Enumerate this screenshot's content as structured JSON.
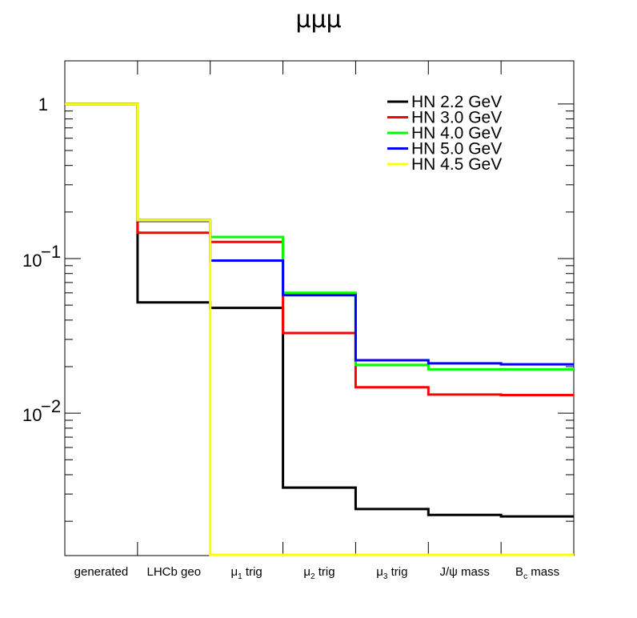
{
  "chart_data": {
    "type": "line",
    "title": "μμμ",
    "xlabel": "",
    "ylabel": "",
    "y_scale": "log",
    "ylim": [
      0.0012,
      1.9
    ],
    "grid": false,
    "legend_position": "top-right",
    "categories": [
      "generated",
      "LHCb geo",
      "μ1 trig",
      "μ2 trig",
      "μ3 trig",
      "J/ψ mass",
      "Bc mass"
    ],
    "y_ticks": [
      {
        "value": 1,
        "label": "1"
      },
      {
        "value": 0.1,
        "label": "10",
        "exp": "−1"
      },
      {
        "value": 0.01,
        "label": "10",
        "exp": "−2"
      }
    ],
    "series": [
      {
        "name": "HN 2.2 GeV",
        "color": "#000000",
        "values": [
          1.0,
          0.052,
          0.048,
          0.0033,
          0.0024,
          0.0022,
          0.00215
        ]
      },
      {
        "name": "HN 3.0 GeV",
        "color": "#ff0000",
        "values": [
          1.0,
          0.147,
          0.128,
          0.033,
          0.0147,
          0.0132,
          0.0131
        ]
      },
      {
        "name": "HN 4.0 GeV",
        "color": "#00ff00",
        "values": [
          1.0,
          0.178,
          0.138,
          0.06,
          0.0205,
          0.0192,
          0.0192
        ]
      },
      {
        "name": "HN 5.0 GeV",
        "color": "#0000ff",
        "values": [
          1.0,
          0.175,
          0.097,
          0.058,
          0.022,
          0.021,
          0.0207
        ]
      },
      {
        "name": "HN 4.5 GeV",
        "color": "#ffff00",
        "values": [
          1.0,
          0.177,
          0.0012,
          0.0012,
          0.0012,
          0.0012,
          0.0012
        ]
      }
    ]
  }
}
